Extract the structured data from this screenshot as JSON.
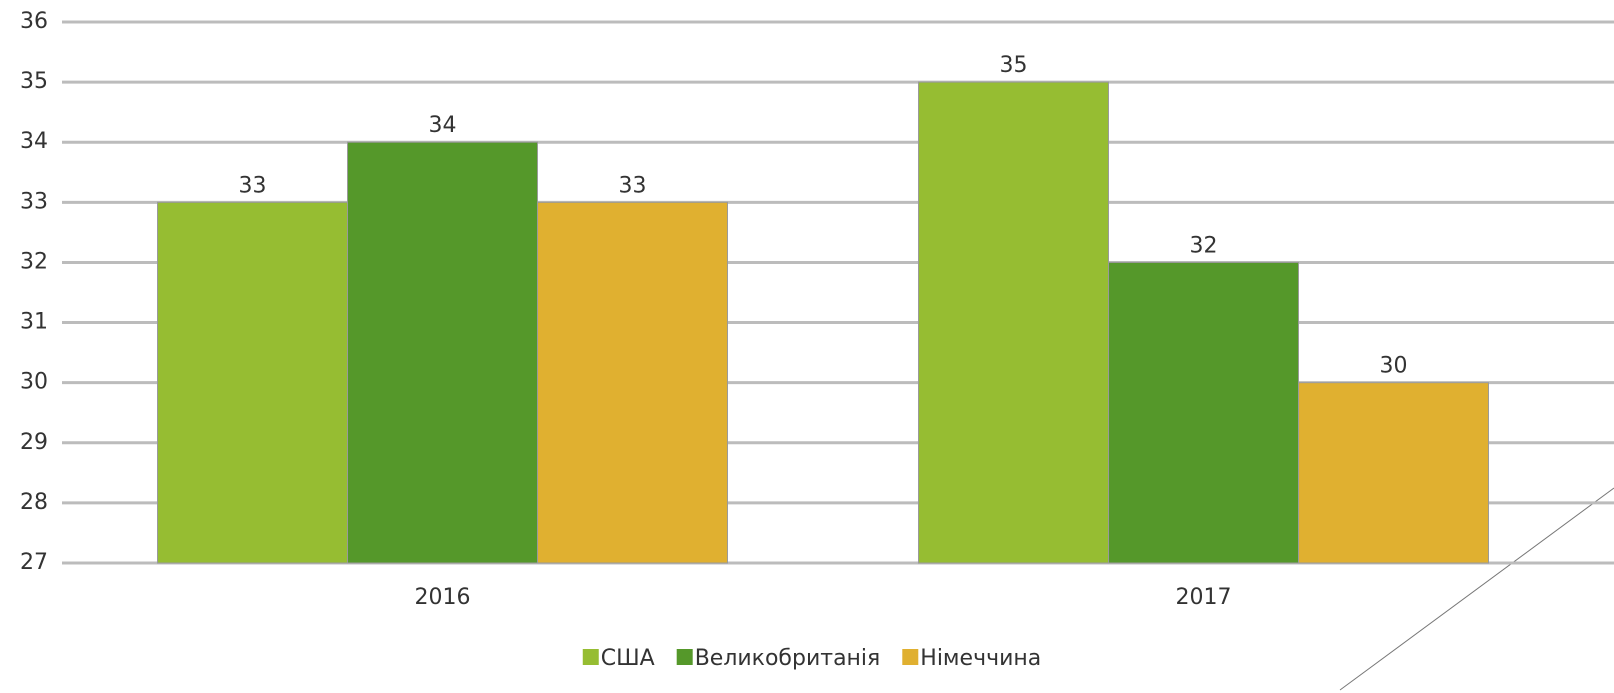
{
  "chart_data": {
    "type": "bar",
    "categories": [
      "2016",
      "2017"
    ],
    "series": [
      {
        "name": "США",
        "color": "#96bd32",
        "values": [
          33,
          35
        ]
      },
      {
        "name": "Великобританія",
        "color": "#55982a",
        "values": [
          34,
          32
        ]
      },
      {
        "name": "Німеччина",
        "color": "#e0b030",
        "values": [
          33,
          30
        ]
      }
    ],
    "ylim": [
      27,
      36
    ],
    "yticks": [
      27,
      28,
      29,
      30,
      31,
      32,
      33,
      34,
      35,
      36
    ],
    "grid": true,
    "legend": "bottom",
    "data_labels": true
  }
}
